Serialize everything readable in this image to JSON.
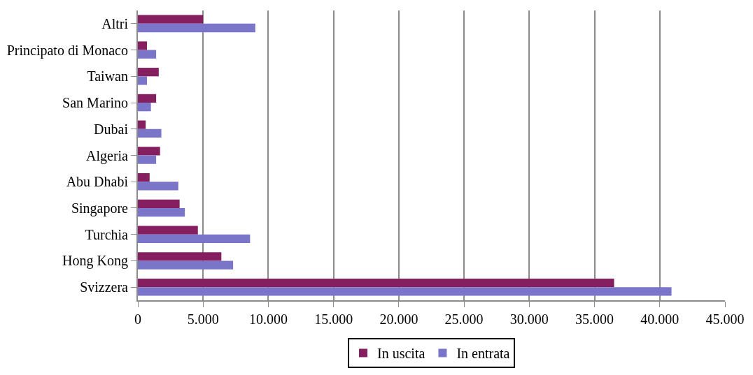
{
  "chart_data": {
    "type": "bar",
    "orientation": "horizontal",
    "categories": [
      "Altri",
      "Principato di Monaco",
      "Taiwan",
      "San Marino",
      "Dubai",
      "Algeria",
      "Abu Dhabi",
      "Singapore",
      "Turchia",
      "Hong Kong",
      "Svizzera"
    ],
    "series": [
      {
        "name": "In uscita",
        "color": "#861f60",
        "values": [
          5000,
          700,
          1600,
          1400,
          600,
          1700,
          900,
          3200,
          4600,
          6400,
          36500
        ]
      },
      {
        "name": "In entrata",
        "color": "#7a75c9",
        "values": [
          9000,
          1400,
          700,
          1000,
          1800,
          1400,
          3100,
          3600,
          8600,
          7300,
          40900
        ]
      }
    ],
    "xlim": [
      0,
      45000
    ],
    "xticks": [
      0,
      {
        "value": 5000,
        "label": "5.000"
      },
      {
        "value": 10000,
        "label": "10.000"
      },
      {
        "value": 15000,
        "label": "15.000"
      },
      {
        "value": 20000,
        "label": "20.000"
      },
      {
        "value": 25000,
        "label": "25.000"
      },
      {
        "value": 30000,
        "label": "30.000"
      },
      {
        "value": 35000,
        "label": "35.000"
      },
      {
        "value": 40000,
        "label": "40.000"
      },
      {
        "value": 45000,
        "label": "45.000"
      }
    ],
    "grid": "x",
    "legend": "bottom"
  }
}
